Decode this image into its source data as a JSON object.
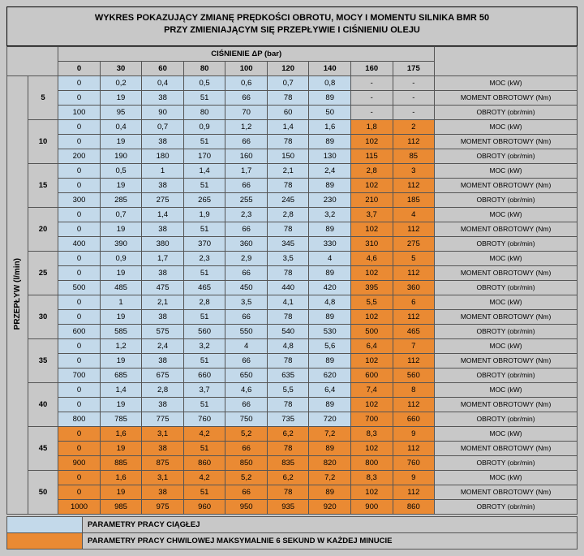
{
  "title_line1": "WYKRES POKAZUJĄCY ZMIANĘ PRĘDKOŚCI OBROTU, MOCY I MOMENTU SILNIKA BMR 50",
  "title_line2": "PRZY ZMIENIAJĄCYM SIĘ PRZEPŁYWIE I CIŚNIENIU OLEJU",
  "pressure_header": "CIŚNIENIE ΔP (bar)",
  "flow_header": "PRZEPŁYW (l/min)",
  "pressure_values": [
    "0",
    "30",
    "60",
    "80",
    "100",
    "120",
    "140",
    "160",
    "175"
  ],
  "row_names": [
    "MOC (kW)",
    "MOMENT OBROTOWY (Nm)",
    "OBROTY (obr/min)"
  ],
  "legend": {
    "continuous": "PARAMETRY PRACY CIĄGŁEJ",
    "momentary": "PARAMETRY PRACY CHWILOWEJ MAKSYMALNIE 6 SEKUND W KAŻDEJ MINUCIE"
  },
  "colors": {
    "blue": "#c3d9ea",
    "orange": "#ea8a33",
    "gray": "#c8c8c8"
  },
  "blocks": [
    {
      "flow": "5",
      "zone": "blue",
      "rows": [
        {
          "v": [
            "0",
            "0,2",
            "0,4",
            "0,5",
            "0,6",
            "0,7",
            "0,8",
            "-",
            "-"
          ],
          "o": [
            7,
            8
          ]
        },
        {
          "v": [
            "0",
            "19",
            "38",
            "51",
            "66",
            "78",
            "89",
            "-",
            "-"
          ],
          "o": [
            7,
            8
          ]
        },
        {
          "v": [
            "100",
            "95",
            "90",
            "80",
            "70",
            "60",
            "50",
            "-",
            "-"
          ],
          "o": [
            7,
            8
          ]
        }
      ]
    },
    {
      "flow": "10",
      "zone": "blue",
      "rows": [
        {
          "v": [
            "0",
            "0,4",
            "0,7",
            "0,9",
            "1,2",
            "1,4",
            "1,6",
            "1,8",
            "2"
          ],
          "o": [
            7,
            8
          ]
        },
        {
          "v": [
            "0",
            "19",
            "38",
            "51",
            "66",
            "78",
            "89",
            "102",
            "112"
          ],
          "o": [
            7,
            8
          ]
        },
        {
          "v": [
            "200",
            "190",
            "180",
            "170",
            "160",
            "150",
            "130",
            "115",
            "85"
          ],
          "o": [
            7,
            8
          ]
        }
      ]
    },
    {
      "flow": "15",
      "zone": "blue",
      "rows": [
        {
          "v": [
            "0",
            "0,5",
            "1",
            "1,4",
            "1,7",
            "2,1",
            "2,4",
            "2,8",
            "3"
          ],
          "o": [
            7,
            8
          ]
        },
        {
          "v": [
            "0",
            "19",
            "38",
            "51",
            "66",
            "78",
            "89",
            "102",
            "112"
          ],
          "o": [
            7,
            8
          ]
        },
        {
          "v": [
            "300",
            "285",
            "275",
            "265",
            "255",
            "245",
            "230",
            "210",
            "185"
          ],
          "o": [
            7,
            8
          ]
        }
      ]
    },
    {
      "flow": "20",
      "zone": "blue",
      "rows": [
        {
          "v": [
            "0",
            "0,7",
            "1,4",
            "1,9",
            "2,3",
            "2,8",
            "3,2",
            "3,7",
            "4"
          ],
          "o": [
            7,
            8
          ]
        },
        {
          "v": [
            "0",
            "19",
            "38",
            "51",
            "66",
            "78",
            "89",
            "102",
            "112"
          ],
          "o": [
            7,
            8
          ]
        },
        {
          "v": [
            "400",
            "390",
            "380",
            "370",
            "360",
            "345",
            "330",
            "310",
            "275"
          ],
          "o": [
            7,
            8
          ]
        }
      ]
    },
    {
      "flow": "25",
      "zone": "blue",
      "rows": [
        {
          "v": [
            "0",
            "0,9",
            "1,7",
            "2,3",
            "2,9",
            "3,5",
            "4",
            "4,6",
            "5"
          ],
          "o": [
            7,
            8
          ]
        },
        {
          "v": [
            "0",
            "19",
            "38",
            "51",
            "66",
            "78",
            "89",
            "102",
            "112"
          ],
          "o": [
            7,
            8
          ]
        },
        {
          "v": [
            "500",
            "485",
            "475",
            "465",
            "450",
            "440",
            "420",
            "395",
            "360"
          ],
          "o": [
            7,
            8
          ]
        }
      ]
    },
    {
      "flow": "30",
      "zone": "blue",
      "rows": [
        {
          "v": [
            "0",
            "1",
            "2,1",
            "2,8",
            "3,5",
            "4,1",
            "4,8",
            "5,5",
            "6"
          ],
          "o": [
            7,
            8
          ]
        },
        {
          "v": [
            "0",
            "19",
            "38",
            "51",
            "66",
            "78",
            "89",
            "102",
            "112"
          ],
          "o": [
            7,
            8
          ]
        },
        {
          "v": [
            "600",
            "585",
            "575",
            "560",
            "550",
            "540",
            "530",
            "500",
            "465"
          ],
          "o": [
            7,
            8
          ]
        }
      ]
    },
    {
      "flow": "35",
      "zone": "blue",
      "rows": [
        {
          "v": [
            "0",
            "1,2",
            "2,4",
            "3,2",
            "4",
            "4,8",
            "5,6",
            "6,4",
            "7"
          ],
          "o": [
            7,
            8
          ]
        },
        {
          "v": [
            "0",
            "19",
            "38",
            "51",
            "66",
            "78",
            "89",
            "102",
            "112"
          ],
          "o": [
            7,
            8
          ]
        },
        {
          "v": [
            "700",
            "685",
            "675",
            "660",
            "650",
            "635",
            "620",
            "600",
            "560"
          ],
          "o": [
            7,
            8
          ]
        }
      ]
    },
    {
      "flow": "40",
      "zone": "blue",
      "rows": [
        {
          "v": [
            "0",
            "1,4",
            "2,8",
            "3,7",
            "4,6",
            "5,5",
            "6,4",
            "7,4",
            "8"
          ],
          "o": [
            7,
            8
          ]
        },
        {
          "v": [
            "0",
            "19",
            "38",
            "51",
            "66",
            "78",
            "89",
            "102",
            "112"
          ],
          "o": [
            7,
            8
          ]
        },
        {
          "v": [
            "800",
            "785",
            "775",
            "760",
            "750",
            "735",
            "720",
            "700",
            "660"
          ],
          "o": [
            7,
            8
          ]
        }
      ]
    },
    {
      "flow": "45",
      "zone": "orange",
      "rows": [
        {
          "v": [
            "0",
            "1,6",
            "3,1",
            "4,2",
            "5,2",
            "6,2",
            "7,2",
            "8,3",
            "9"
          ],
          "o": []
        },
        {
          "v": [
            "0",
            "19",
            "38",
            "51",
            "66",
            "78",
            "89",
            "102",
            "112"
          ],
          "o": []
        },
        {
          "v": [
            "900",
            "885",
            "875",
            "860",
            "850",
            "835",
            "820",
            "800",
            "760"
          ],
          "o": []
        }
      ]
    },
    {
      "flow": "50",
      "zone": "orange",
      "rows": [
        {
          "v": [
            "0",
            "1,6",
            "3,1",
            "4,2",
            "5,2",
            "6,2",
            "7,2",
            "8,3",
            "9"
          ],
          "o": []
        },
        {
          "v": [
            "0",
            "19",
            "38",
            "51",
            "66",
            "78",
            "89",
            "102",
            "112"
          ],
          "o": []
        },
        {
          "v": [
            "1000",
            "985",
            "975",
            "960",
            "950",
            "935",
            "920",
            "900",
            "860"
          ],
          "o": []
        }
      ]
    }
  ]
}
